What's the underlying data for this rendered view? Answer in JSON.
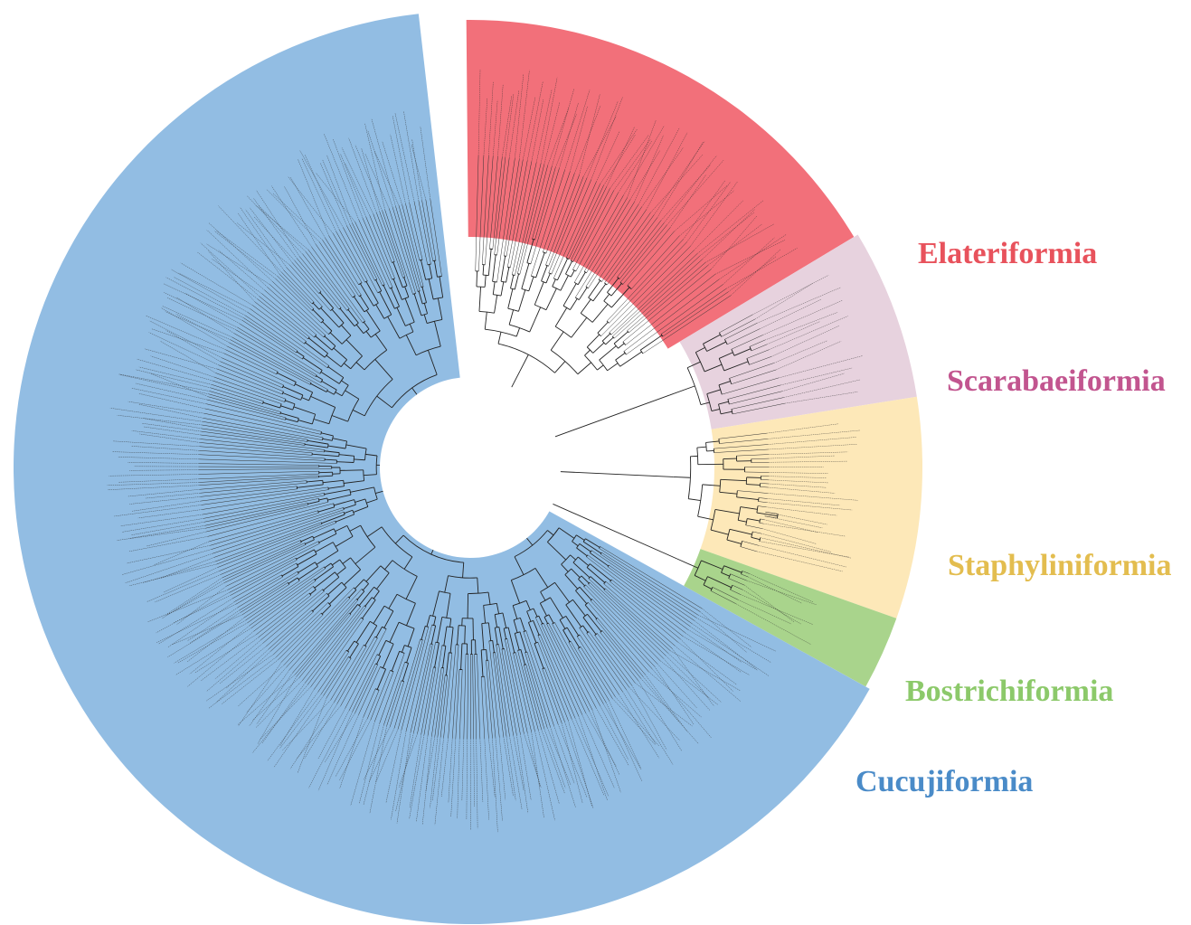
{
  "clades": [
    {
      "id": "elateriformia",
      "name": "Elateriformia",
      "color": "#f2707a",
      "label_color": "#e8525c",
      "tips": 58
    },
    {
      "id": "scarabaeiformia",
      "name": "Scarabaeiformia",
      "color": "#e7d2de",
      "label_color": "#c2558f",
      "tips": 12
    },
    {
      "id": "staphyliniformia",
      "name": "Staphyliniformia",
      "color": "#fde8b8",
      "label_color": "#e3bd4f",
      "tips": 20
    },
    {
      "id": "bostrichiformia",
      "name": "Bostrichiformia",
      "color": "#a9d48c",
      "label_color": "#8cc96a",
      "tips": 8
    },
    {
      "id": "cucujiformia",
      "name": "Cucujiformia",
      "color": "#92bde3",
      "label_color": "#4a8bc8",
      "tips": 240
    }
  ],
  "icons": {
    "center": "tree-root"
  }
}
